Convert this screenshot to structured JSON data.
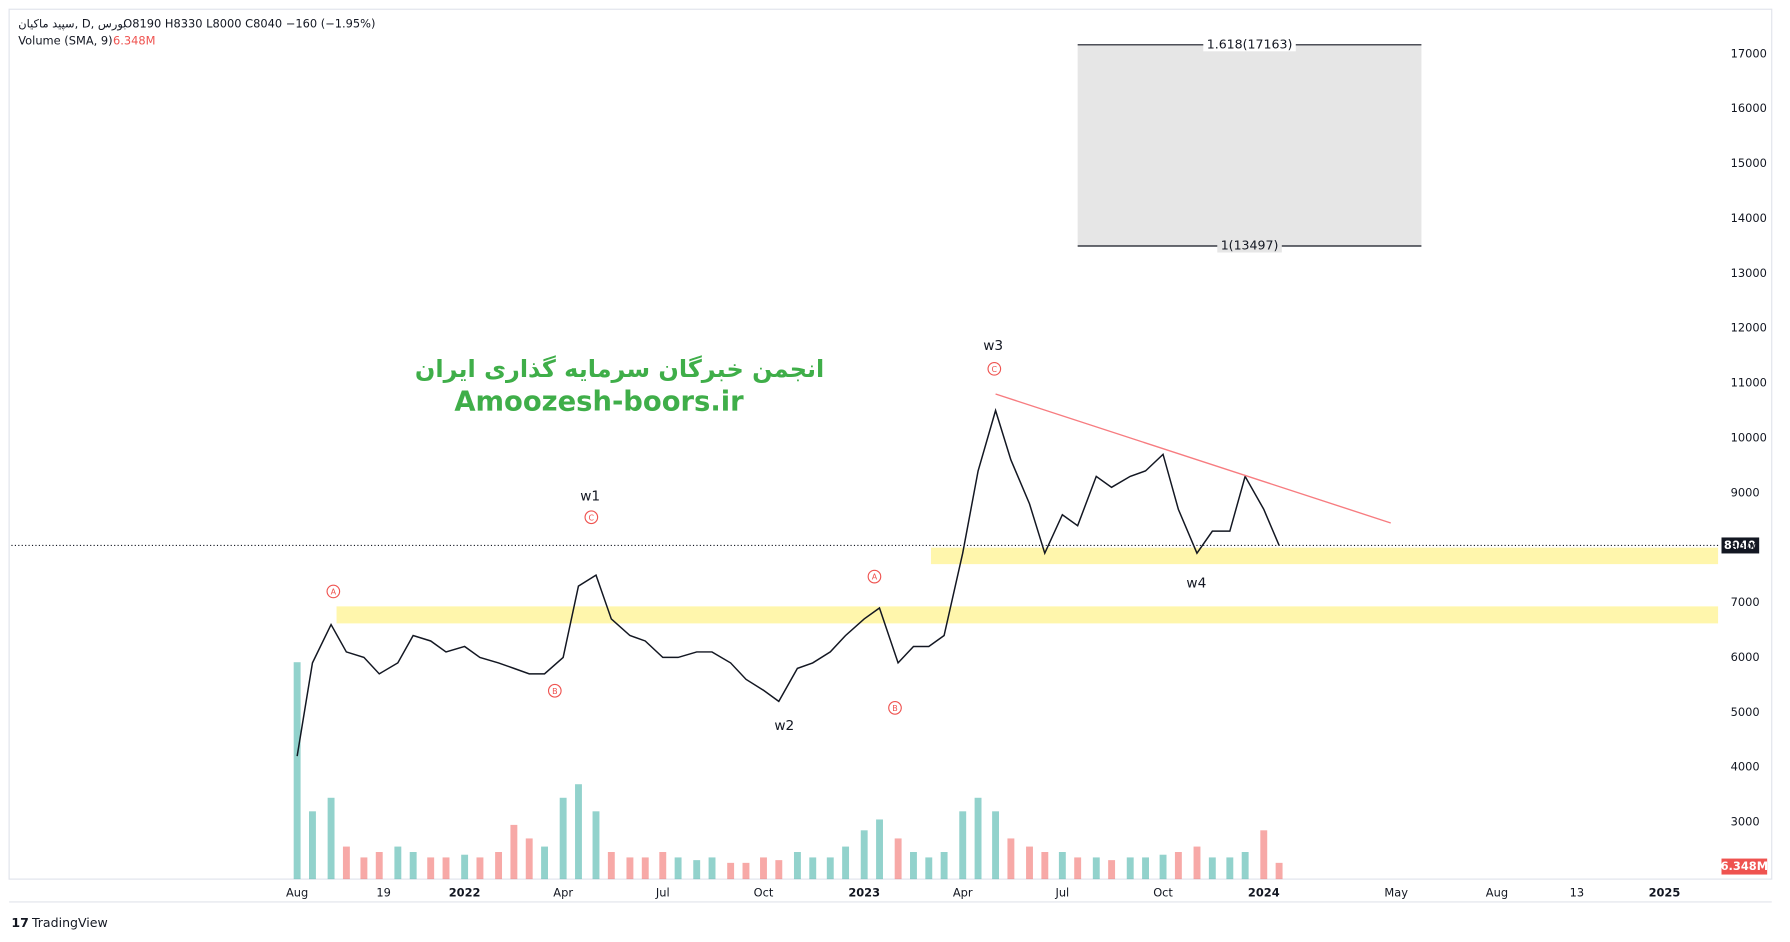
{
  "header": {
    "symbol": "سپید ماکیان, D, بورس",
    "ohlc": "O8190  H8330  L8000  C8040  −160 (−1.95%)",
    "volume_label": "Volume (SMA, 9)",
    "volume_value": "6.348M"
  },
  "watermark": {
    "line1": "انجمن خبرگان سرمایه گذاری ایران",
    "line2": "Amoozesh-boors.ir"
  },
  "footer": {
    "brand": "TradingView"
  },
  "chart_data": {
    "type": "line",
    "color": "#131722",
    "x": [
      "2021-08-01",
      "2021-08-15",
      "2021-09-01",
      "2021-09-15",
      "2021-10-01",
      "2021-10-15",
      "2021-11-01",
      "2021-11-15",
      "2021-12-01",
      "2021-12-15",
      "2022-01-01",
      "2022-01-15",
      "2022-02-01",
      "2022-02-15",
      "2022-03-01",
      "2022-03-15",
      "2022-04-01",
      "2022-04-15",
      "2022-05-01",
      "2022-05-15",
      "2022-06-01",
      "2022-06-15",
      "2022-07-01",
      "2022-07-15",
      "2022-08-01",
      "2022-08-15",
      "2022-09-01",
      "2022-09-15",
      "2022-10-01",
      "2022-10-15",
      "2022-11-01",
      "2022-11-15",
      "2022-12-01",
      "2022-12-15",
      "2023-01-01",
      "2023-01-15",
      "2023-02-01",
      "2023-02-15",
      "2023-03-01",
      "2023-03-15",
      "2023-04-01",
      "2023-04-15",
      "2023-05-01",
      "2023-05-15",
      "2023-06-01",
      "2023-06-15",
      "2023-07-01",
      "2023-07-15",
      "2023-08-01",
      "2023-08-15",
      "2023-09-01",
      "2023-09-15",
      "2023-10-01",
      "2023-10-15",
      "2023-11-01",
      "2023-11-15",
      "2023-12-01",
      "2023-12-15",
      "2024-01-01",
      "2024-01-15"
    ],
    "values": [
      4200,
      5900,
      6600,
      6100,
      6000,
      5700,
      5900,
      6400,
      6300,
      6100,
      6200,
      6000,
      5900,
      5800,
      5700,
      5700,
      6000,
      7300,
      7500,
      6700,
      6400,
      6300,
      6000,
      6000,
      6100,
      6100,
      5900,
      5600,
      5400,
      5200,
      5800,
      5900,
      6100,
      6400,
      6700,
      6900,
      5900,
      6200,
      6200,
      6400,
      7900,
      9400,
      10500,
      9600,
      8800,
      7900,
      8600,
      8400,
      9300,
      9100,
      9300,
      9400,
      9700,
      8700,
      7900,
      8300,
      8300,
      9300,
      8700,
      8040
    ],
    "volume": [
      80,
      25,
      30,
      12,
      8,
      10,
      12,
      10,
      8,
      8,
      9,
      8,
      10,
      20,
      15,
      12,
      30,
      35,
      25,
      10,
      8,
      8,
      10,
      8,
      7,
      8,
      6,
      6,
      8,
      7,
      10,
      8,
      8,
      12,
      18,
      22,
      15,
      10,
      8,
      10,
      25,
      30,
      25,
      15,
      12,
      10,
      10,
      8,
      8,
      7,
      8,
      8,
      9,
      10,
      12,
      8,
      8,
      10,
      18,
      6
    ],
    "up_color": "#26a69a",
    "down_color": "#ef5350",
    "last_price": 8040,
    "ylim": [
      1960,
      17770
    ],
    "yticks": [
      3000,
      4000,
      5000,
      6000,
      7000,
      8000,
      9000,
      10000,
      11000,
      12000,
      13000,
      14000,
      15000,
      16000,
      17000
    ],
    "xlim": [
      "2020-11-13",
      "2025-02-19"
    ],
    "xticks": [
      {
        "value": "2021-08-01",
        "label": "Aug"
      },
      {
        "value": "2021-10-19",
        "label": "19"
      },
      {
        "value": "2022-01-01",
        "label": "2022"
      },
      {
        "value": "2022-04-01",
        "label": "Apr"
      },
      {
        "value": "2022-07-01",
        "label": "Jul"
      },
      {
        "value": "2022-10-01",
        "label": "Oct"
      },
      {
        "value": "2023-01-01",
        "label": "2023"
      },
      {
        "value": "2023-04-01",
        "label": "Apr"
      },
      {
        "value": "2023-07-01",
        "label": "Jul"
      },
      {
        "value": "2023-10-01",
        "label": "Oct"
      },
      {
        "value": "2024-01-01",
        "label": "2024"
      },
      {
        "value": "2024-05-01",
        "label": "May"
      },
      {
        "value": "2024-08-01",
        "label": "Aug"
      },
      {
        "value": "2024-10-13",
        "label": "13"
      },
      {
        "value": "2025-01-01",
        "label": "2025"
      }
    ],
    "zones": [
      {
        "from": "2023-03-03",
        "range": [
          7700,
          8000
        ]
      },
      {
        "from": "2021-09-06",
        "range": [
          6620,
          6930
        ]
      }
    ],
    "zone_color": "#fff59d",
    "trendline": {
      "x": [
        "2023-05-01",
        "2024-04-26"
      ],
      "y": [
        10800,
        8450
      ],
      "color": "#f77c80"
    },
    "fib": {
      "x": [
        "2023-07-15",
        "2024-05-24"
      ],
      "levels": [
        {
          "value": 17163,
          "label": "1.618(17163)"
        },
        {
          "value": 13497,
          "label": "1(13497)"
        }
      ]
    },
    "wave_labels": [
      "w1",
      "w2",
      "w3",
      "w4"
    ],
    "abc_labels": [
      "A",
      "B",
      "C",
      "A",
      "B",
      "C"
    ]
  }
}
